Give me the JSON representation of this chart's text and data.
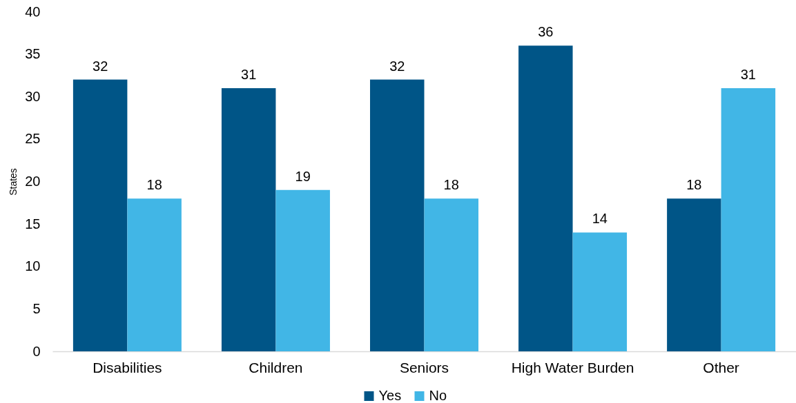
{
  "chart_data": {
    "type": "bar",
    "ylabel": "States",
    "categories": [
      "Disabilities",
      "Children",
      "Seniors",
      "High Water Burden",
      "Other"
    ],
    "series": [
      {
        "name": "Yes",
        "color": "#005587",
        "values": [
          32,
          31,
          32,
          36,
          18
        ]
      },
      {
        "name": "No",
        "color": "#41b6e6",
        "values": [
          18,
          19,
          18,
          14,
          31
        ]
      }
    ],
    "ylim": [
      0,
      40
    ],
    "yticks": [
      0,
      5,
      10,
      15,
      20,
      25,
      30,
      35,
      40
    ],
    "data_labels": true,
    "legend": "bottom",
    "grid": false
  }
}
